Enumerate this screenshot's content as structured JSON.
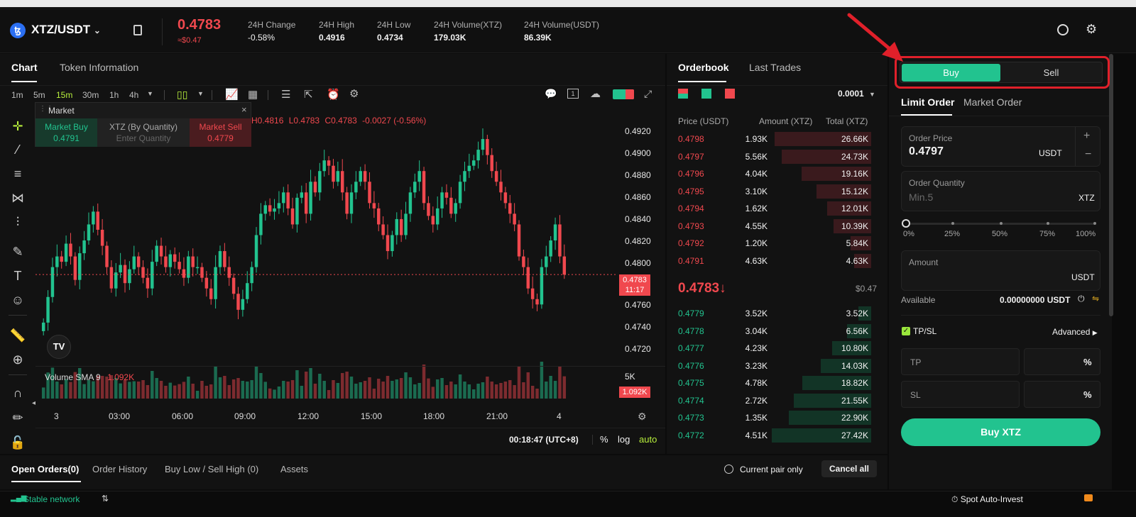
{
  "header": {
    "pair": "XTZ/USDT",
    "logo_glyph": "ꜩ",
    "last_price": "0.4783",
    "last_price_usd": "≈$0.47",
    "stats": [
      {
        "label": "24H Change",
        "value": "-0.58%",
        "color": "#f0484e"
      },
      {
        "label": "24H High",
        "value": "0.4916"
      },
      {
        "label": "24H Low",
        "value": "0.4734"
      },
      {
        "label": "24H Volume(XTZ)",
        "value": "179.03K"
      },
      {
        "label": "24H Volume(USDT)",
        "value": "86.39K"
      }
    ]
  },
  "chart_tabs": [
    "Chart",
    "Token Information"
  ],
  "toolbar": {
    "intervals": [
      "1m",
      "5m",
      "15m",
      "30m",
      "1h",
      "4h"
    ],
    "active_interval": "15m"
  },
  "market_box": {
    "title": "Market",
    "buy_label": "Market Buy",
    "buy_price": "0.4791",
    "mid_label": "XTZ (By Quantity)",
    "mid_placeholder": "Enter Quantity",
    "sell_label": "Market Sell",
    "sell_price": "0.4779"
  },
  "ohlc_line": {
    "h": "H0.4816",
    "l": "L0.4783",
    "c": "C0.4783",
    "chg": "-0.0027 (-0.56%)"
  },
  "price_axis": [
    "0.4920",
    "0.4900",
    "0.4880",
    "0.4860",
    "0.4840",
    "0.4820",
    "0.4800",
    "0.4760",
    "0.4740",
    "0.4720"
  ],
  "price_marker": {
    "price": "0.4783",
    "countdown": "11:17"
  },
  "volume": {
    "label": "Volume SMA 9",
    "value": "1.092K",
    "axis_5k": "5K",
    "marker": "1.092K"
  },
  "time_axis": [
    "3",
    "03:00",
    "06:00",
    "09:00",
    "12:00",
    "15:00",
    "18:00",
    "21:00",
    "4"
  ],
  "chart_footer": {
    "time": "00:18:47 (UTC+8)",
    "pct": "%",
    "log": "log",
    "auto": "auto"
  },
  "orderbook": {
    "tabs": [
      "Orderbook",
      "Last Trades"
    ],
    "precision": "0.0001",
    "headers": [
      "Price (USDT)",
      "Amount (XTZ)",
      "Total (XTZ)"
    ],
    "asks": [
      {
        "price": "0.4798",
        "amount": "1.93K",
        "total": "26.66K",
        "depth": 0.97
      },
      {
        "price": "0.4797",
        "amount": "5.56K",
        "total": "24.73K",
        "depth": 0.9
      },
      {
        "price": "0.4796",
        "amount": "4.04K",
        "total": "19.16K",
        "depth": 0.7
      },
      {
        "price": "0.4795",
        "amount": "3.10K",
        "total": "15.12K",
        "depth": 0.55
      },
      {
        "price": "0.4794",
        "amount": "1.62K",
        "total": "12.01K",
        "depth": 0.44
      },
      {
        "price": "0.4793",
        "amount": "4.55K",
        "total": "10.39K",
        "depth": 0.38
      },
      {
        "price": "0.4792",
        "amount": "1.20K",
        "total": "5.84K",
        "depth": 0.21
      },
      {
        "price": "0.4791",
        "amount": "4.63K",
        "total": "4.63K",
        "depth": 0.17
      }
    ],
    "mid_price": "0.4783↓",
    "mid_usd": "$0.47",
    "bids": [
      {
        "price": "0.4779",
        "amount": "3.52K",
        "total": "3.52K",
        "depth": 0.13
      },
      {
        "price": "0.4778",
        "amount": "3.04K",
        "total": "6.56K",
        "depth": 0.24
      },
      {
        "price": "0.4777",
        "amount": "4.23K",
        "total": "10.80K",
        "depth": 0.39
      },
      {
        "price": "0.4776",
        "amount": "3.23K",
        "total": "14.03K",
        "depth": 0.51
      },
      {
        "price": "0.4775",
        "amount": "4.78K",
        "total": "18.82K",
        "depth": 0.69
      },
      {
        "price": "0.4774",
        "amount": "2.72K",
        "total": "21.55K",
        "depth": 0.78
      },
      {
        "price": "0.4773",
        "amount": "1.35K",
        "total": "22.90K",
        "depth": 0.83
      },
      {
        "price": "0.4772",
        "amount": "4.51K",
        "total": "27.42K",
        "depth": 1.0
      }
    ]
  },
  "trade": {
    "buy_tab": "Buy",
    "sell_tab": "Sell",
    "order_types": [
      "Limit Order",
      "Market Order"
    ],
    "order_price_label": "Order Price",
    "order_price": "0.4797",
    "price_unit": "USDT",
    "qty_label": "Order Quantity",
    "qty_placeholder": "Min.5",
    "qty_unit": "XTZ",
    "slider_marks": [
      "0%",
      "25%",
      "50%",
      "75%",
      "100%"
    ],
    "slider_value": 0,
    "amount_label": "Amount",
    "amount_unit": "USDT",
    "available_label": "Available",
    "available_value": "0.00000000 USDT",
    "tpsl_label": "TP/SL",
    "advanced_label": "Advanced",
    "tp_label": "TP",
    "sl_label": "SL",
    "pct": "%",
    "buy_button": "Buy XTZ"
  },
  "bottom_tabs": [
    "Open Orders(0)",
    "Order History",
    "Buy Low / Sell High (0)",
    "Assets"
  ],
  "current_pair_only": "Current pair only",
  "cancel_all": "Cancel all",
  "status_bar": {
    "network": "Stable network",
    "auto_invest": "Spot Auto-Invest"
  },
  "colors": {
    "up": "#22c38f",
    "down": "#f0484e",
    "annotation": "#e0202a"
  }
}
